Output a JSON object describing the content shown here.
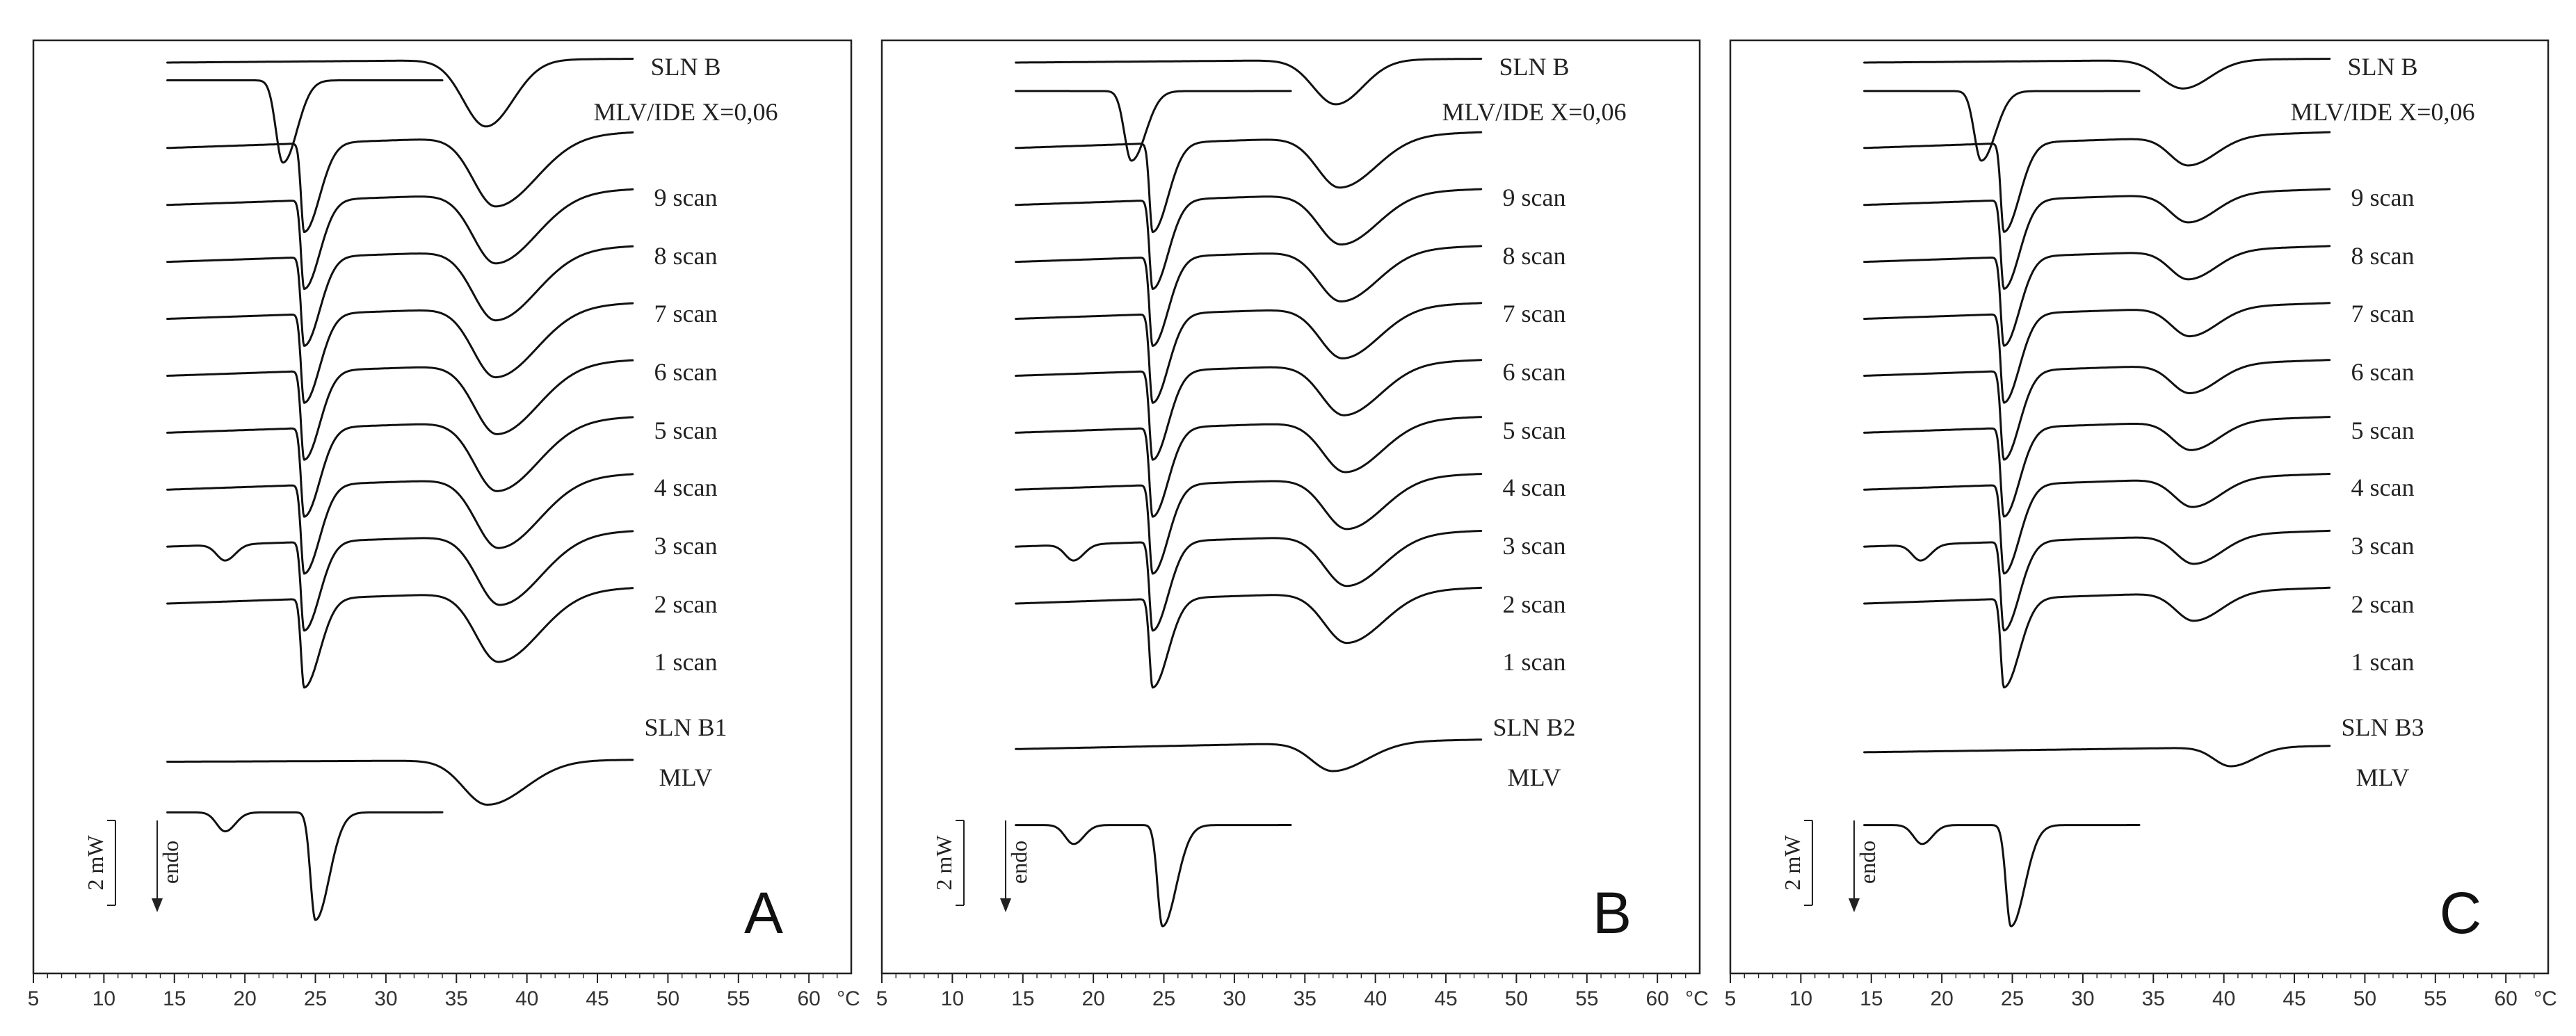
{
  "chart_data": [
    {
      "type": "line",
      "panel_label": "A",
      "xlim": [
        5,
        63
      ],
      "x_ticks": [
        5,
        10,
        15,
        20,
        25,
        30,
        35,
        40,
        45,
        50,
        55,
        60
      ],
      "x_unit": "°C",
      "scale_bar": "2 mW",
      "direction": "endo",
      "series": [
        {
          "name": "SLN B",
          "kind": "sln",
          "start": 14.5,
          "end": 47.5,
          "base": 0.0,
          "slope": -0.6,
          "dips": [
            {
              "center": 37.1,
              "depth": 10.5,
              "width": 1.6,
              "asym": 1.2
            }
          ]
        },
        {
          "name": "MLV/IDE X=0,06",
          "kind": "mlv",
          "start": 14.5,
          "end": 34.0,
          "base": 2.8,
          "slope": 0,
          "dips": [
            {
              "center": 22.7,
              "depth": 13,
              "width": 0.5,
              "asym": 2.0
            }
          ]
        },
        {
          "name": "9 scan",
          "kind": "scan",
          "start": 14.5,
          "end": 47.5,
          "base": 13.5,
          "slope": -2.5,
          "dips": [
            {
              "center": 24.2,
              "depth": 14,
              "width": 0.22,
              "asym": 5
            },
            {
              "center": 37.8,
              "depth": 11,
              "width": 1.6,
              "asym": 1.8
            }
          ]
        },
        {
          "name": "8 scan",
          "kind": "scan",
          "start": 14.5,
          "end": 47.5,
          "base": 22.5,
          "slope": -2.5,
          "dips": [
            {
              "center": 24.2,
              "depth": 14,
              "width": 0.22,
              "asym": 5
            },
            {
              "center": 37.8,
              "depth": 11,
              "width": 1.6,
              "asym": 1.8
            }
          ]
        },
        {
          "name": "7 scan",
          "kind": "scan",
          "start": 14.5,
          "end": 47.5,
          "base": 31.5,
          "slope": -2.5,
          "dips": [
            {
              "center": 24.2,
              "depth": 14,
              "width": 0.22,
              "asym": 5
            },
            {
              "center": 37.8,
              "depth": 11,
              "width": 1.6,
              "asym": 1.8
            }
          ]
        },
        {
          "name": "6 scan",
          "kind": "scan",
          "start": 14.5,
          "end": 47.5,
          "base": 40.5,
          "slope": -2.5,
          "dips": [
            {
              "center": 24.2,
              "depth": 14,
              "width": 0.22,
              "asym": 5
            },
            {
              "center": 37.8,
              "depth": 11,
              "width": 1.6,
              "asym": 1.8
            }
          ]
        },
        {
          "name": "5 scan",
          "kind": "scan",
          "start": 14.5,
          "end": 47.5,
          "base": 49.5,
          "slope": -2.5,
          "dips": [
            {
              "center": 24.2,
              "depth": 14,
              "width": 0.22,
              "asym": 5
            },
            {
              "center": 37.9,
              "depth": 11,
              "width": 1.6,
              "asym": 1.8
            }
          ]
        },
        {
          "name": "4 scan",
          "kind": "scan",
          "start": 14.5,
          "end": 47.5,
          "base": 58.5,
          "slope": -2.5,
          "dips": [
            {
              "center": 24.2,
              "depth": 14,
              "width": 0.22,
              "asym": 5
            },
            {
              "center": 37.9,
              "depth": 11,
              "width": 1.6,
              "asym": 1.8
            }
          ]
        },
        {
          "name": "3 scan",
          "kind": "scan",
          "start": 14.5,
          "end": 47.5,
          "base": 67.5,
          "slope": -2.5,
          "dips": [
            {
              "center": 24.2,
              "depth": 14,
              "width": 0.22,
              "asym": 5
            },
            {
              "center": 38.0,
              "depth": 11,
              "width": 1.6,
              "asym": 1.8
            }
          ]
        },
        {
          "name": "2 scan",
          "kind": "scan",
          "start": 14.5,
          "end": 47.5,
          "base": 76.5,
          "slope": -2.5,
          "dips": [
            {
              "center": 18.6,
              "depth": 2.5,
              "width": 0.6,
              "asym": 1.2
            },
            {
              "center": 24.2,
              "depth": 14,
              "width": 0.22,
              "asym": 5
            },
            {
              "center": 38.1,
              "depth": 11,
              "width": 1.6,
              "asym": 1.8
            }
          ]
        },
        {
          "name": "1 scan",
          "kind": "scan",
          "start": 14.5,
          "end": 47.5,
          "base": 85.5,
          "slope": -2.5,
          "dips": [
            {
              "center": 24.2,
              "depth": 14,
              "width": 0.22,
              "asym": 5
            },
            {
              "center": 38.0,
              "depth": 11,
              "width": 1.6,
              "asym": 1.8
            }
          ]
        },
        {
          "name": "SLN B1",
          "kind": "sln",
          "start": 14.5,
          "end": 47.5,
          "base": 110.5,
          "slope": -0.3,
          "dips": [
            {
              "center": 37.2,
              "depth": 7,
              "width": 1.7,
              "asym": 1.6
            }
          ]
        },
        {
          "name": "MLV",
          "kind": "mlv",
          "start": 14.5,
          "end": 34.0,
          "base": 118.5,
          "slope": 0,
          "dips": [
            {
              "center": 18.6,
              "depth": 3,
              "width": 0.6,
              "asym": 1.2
            },
            {
              "center": 25.0,
              "depth": 17,
              "width": 0.35,
              "asym": 2.8
            }
          ]
        }
      ]
    },
    {
      "type": "line",
      "panel_label": "B",
      "xlim": [
        5,
        63
      ],
      "x_ticks": [
        5,
        10,
        15,
        20,
        25,
        30,
        35,
        40,
        45,
        50,
        55,
        60
      ],
      "x_unit": "°C",
      "scale_bar": "2 mW",
      "direction": "endo",
      "series": [
        {
          "name": "SLN B",
          "kind": "sln",
          "start": 14.5,
          "end": 47.5,
          "base": 0.0,
          "slope": -0.6,
          "dips": [
            {
              "center": 37.2,
              "depth": 7,
              "width": 1.6,
              "asym": 1.2
            }
          ]
        },
        {
          "name": "MLV/IDE X=0,06",
          "kind": "mlv",
          "start": 14.5,
          "end": 34.0,
          "base": 4.5,
          "slope": 0,
          "dips": [
            {
              "center": 22.7,
              "depth": 11,
              "width": 0.5,
              "asym": 2.0
            }
          ]
        },
        {
          "name": "9 scan",
          "kind": "scan",
          "start": 14.5,
          "end": 47.5,
          "base": 13.5,
          "slope": -2.5,
          "dips": [
            {
              "center": 24.2,
              "depth": 14,
              "width": 0.22,
              "asym": 5
            },
            {
              "center": 37.5,
              "depth": 8,
              "width": 1.6,
              "asym": 1.6
            }
          ]
        },
        {
          "name": "8 scan",
          "kind": "scan",
          "start": 14.5,
          "end": 47.5,
          "base": 22.5,
          "slope": -2.5,
          "dips": [
            {
              "center": 24.2,
              "depth": 14,
              "width": 0.22,
              "asym": 5
            },
            {
              "center": 37.6,
              "depth": 8,
              "width": 1.6,
              "asym": 1.6
            }
          ]
        },
        {
          "name": "7 scan",
          "kind": "scan",
          "start": 14.5,
          "end": 47.5,
          "base": 31.5,
          "slope": -2.5,
          "dips": [
            {
              "center": 24.2,
              "depth": 14,
              "width": 0.22,
              "asym": 5
            },
            {
              "center": 37.6,
              "depth": 8,
              "width": 1.6,
              "asym": 1.6
            }
          ]
        },
        {
          "name": "6 scan",
          "kind": "scan",
          "start": 14.5,
          "end": 47.5,
          "base": 40.5,
          "slope": -2.5,
          "dips": [
            {
              "center": 24.2,
              "depth": 14,
              "width": 0.22,
              "asym": 5
            },
            {
              "center": 37.7,
              "depth": 8,
              "width": 1.6,
              "asym": 1.6
            }
          ]
        },
        {
          "name": "5 scan",
          "kind": "scan",
          "start": 14.5,
          "end": 47.5,
          "base": 49.5,
          "slope": -2.5,
          "dips": [
            {
              "center": 24.2,
              "depth": 14,
              "width": 0.22,
              "asym": 5
            },
            {
              "center": 37.8,
              "depth": 8,
              "width": 1.6,
              "asym": 1.6
            }
          ]
        },
        {
          "name": "4 scan",
          "kind": "scan",
          "start": 14.5,
          "end": 47.5,
          "base": 58.5,
          "slope": -2.5,
          "dips": [
            {
              "center": 24.2,
              "depth": 14,
              "width": 0.22,
              "asym": 5
            },
            {
              "center": 37.9,
              "depth": 8,
              "width": 1.6,
              "asym": 1.6
            }
          ]
        },
        {
          "name": "3 scan",
          "kind": "scan",
          "start": 14.5,
          "end": 47.5,
          "base": 67.5,
          "slope": -2.5,
          "dips": [
            {
              "center": 24.2,
              "depth": 14,
              "width": 0.22,
              "asym": 5
            },
            {
              "center": 38.0,
              "depth": 8,
              "width": 1.6,
              "asym": 1.6
            }
          ]
        },
        {
          "name": "2 scan",
          "kind": "scan",
          "start": 14.5,
          "end": 47.5,
          "base": 76.5,
          "slope": -2.5,
          "dips": [
            {
              "center": 18.6,
              "depth": 2.5,
              "width": 0.6,
              "asym": 1.2
            },
            {
              "center": 24.2,
              "depth": 14,
              "width": 0.22,
              "asym": 5
            },
            {
              "center": 38.0,
              "depth": 8,
              "width": 1.6,
              "asym": 1.6
            }
          ]
        },
        {
          "name": "1 scan",
          "kind": "scan",
          "start": 14.5,
          "end": 47.5,
          "base": 85.5,
          "slope": -2.5,
          "dips": [
            {
              "center": 24.2,
              "depth": 14,
              "width": 0.22,
              "asym": 5
            },
            {
              "center": 38.0,
              "depth": 8,
              "width": 1.6,
              "asym": 1.6
            }
          ]
        },
        {
          "name": "SLN B2",
          "kind": "sln",
          "start": 14.5,
          "end": 47.5,
          "base": 108.5,
          "slope": -1.5,
          "dips": [
            {
              "center": 37.0,
              "depth": 4.5,
              "width": 1.5,
              "asym": 1.6
            }
          ]
        },
        {
          "name": "MLV",
          "kind": "mlv",
          "start": 14.5,
          "end": 34.0,
          "base": 120.5,
          "slope": 0,
          "dips": [
            {
              "center": 18.6,
              "depth": 3,
              "width": 0.6,
              "asym": 1.2
            },
            {
              "center": 24.9,
              "depth": 16,
              "width": 0.35,
              "asym": 2.8
            }
          ]
        }
      ]
    },
    {
      "type": "line",
      "panel_label": "C",
      "xlim": [
        5,
        63
      ],
      "x_ticks": [
        5,
        10,
        15,
        20,
        25,
        30,
        35,
        40,
        45,
        50,
        55,
        60
      ],
      "x_unit": "°C",
      "scale_bar": "2 mW",
      "direction": "endo",
      "series": [
        {
          "name": "SLN B",
          "kind": "sln",
          "start": 14.5,
          "end": 47.5,
          "base": 0.0,
          "slope": -0.6,
          "dips": [
            {
              "center": 37.1,
              "depth": 4.5,
              "width": 1.6,
              "asym": 1.2
            }
          ]
        },
        {
          "name": "MLV/IDE X=0,06",
          "kind": "mlv",
          "start": 14.5,
          "end": 34.0,
          "base": 4.5,
          "slope": 0,
          "dips": [
            {
              "center": 22.8,
              "depth": 11,
              "width": 0.5,
              "asym": 2.0
            }
          ]
        },
        {
          "name": "9 scan",
          "kind": "scan",
          "start": 14.5,
          "end": 47.5,
          "base": 13.5,
          "slope": -2.5,
          "dips": [
            {
              "center": 24.4,
              "depth": 14,
              "width": 0.22,
              "asym": 5
            },
            {
              "center": 37.5,
              "depth": 4.5,
              "width": 1.3,
              "asym": 1.5
            }
          ]
        },
        {
          "name": "8 scan",
          "kind": "scan",
          "start": 14.5,
          "end": 47.5,
          "base": 22.5,
          "slope": -2.5,
          "dips": [
            {
              "center": 24.4,
              "depth": 14,
              "width": 0.22,
              "asym": 5
            },
            {
              "center": 37.5,
              "depth": 4.5,
              "width": 1.3,
              "asym": 1.5
            }
          ]
        },
        {
          "name": "7 scan",
          "kind": "scan",
          "start": 14.5,
          "end": 47.5,
          "base": 31.5,
          "slope": -2.5,
          "dips": [
            {
              "center": 24.4,
              "depth": 14,
              "width": 0.22,
              "asym": 5
            },
            {
              "center": 37.5,
              "depth": 4.5,
              "width": 1.3,
              "asym": 1.5
            }
          ]
        },
        {
          "name": "6 scan",
          "kind": "scan",
          "start": 14.5,
          "end": 47.5,
          "base": 40.5,
          "slope": -2.5,
          "dips": [
            {
              "center": 24.4,
              "depth": 14,
              "width": 0.22,
              "asym": 5
            },
            {
              "center": 37.6,
              "depth": 4.5,
              "width": 1.3,
              "asym": 1.5
            }
          ]
        },
        {
          "name": "5 scan",
          "kind": "scan",
          "start": 14.5,
          "end": 47.5,
          "base": 49.5,
          "slope": -2.5,
          "dips": [
            {
              "center": 24.4,
              "depth": 14,
              "width": 0.22,
              "asym": 5
            },
            {
              "center": 37.6,
              "depth": 4.5,
              "width": 1.3,
              "asym": 1.5
            }
          ]
        },
        {
          "name": "4 scan",
          "kind": "scan",
          "start": 14.5,
          "end": 47.5,
          "base": 58.5,
          "slope": -2.5,
          "dips": [
            {
              "center": 24.4,
              "depth": 14,
              "width": 0.22,
              "asym": 5
            },
            {
              "center": 37.7,
              "depth": 4.5,
              "width": 1.3,
              "asym": 1.5
            }
          ]
        },
        {
          "name": "3 scan",
          "kind": "scan",
          "start": 14.5,
          "end": 47.5,
          "base": 67.5,
          "slope": -2.5,
          "dips": [
            {
              "center": 24.4,
              "depth": 14,
              "width": 0.22,
              "asym": 5
            },
            {
              "center": 37.8,
              "depth": 4.5,
              "width": 1.3,
              "asym": 1.5
            }
          ]
        },
        {
          "name": "2 scan",
          "kind": "scan",
          "start": 14.5,
          "end": 47.5,
          "base": 76.5,
          "slope": -2.5,
          "dips": [
            {
              "center": 18.5,
              "depth": 2.5,
              "width": 0.6,
              "asym": 1.2
            },
            {
              "center": 24.4,
              "depth": 14,
              "width": 0.22,
              "asym": 5
            },
            {
              "center": 37.9,
              "depth": 4.5,
              "width": 1.3,
              "asym": 1.5
            }
          ]
        },
        {
          "name": "1 scan",
          "kind": "scan",
          "start": 14.5,
          "end": 47.5,
          "base": 85.5,
          "slope": -2.5,
          "dips": [
            {
              "center": 24.4,
              "depth": 14,
              "width": 0.22,
              "asym": 5
            },
            {
              "center": 37.9,
              "depth": 4.5,
              "width": 1.3,
              "asym": 1.5
            }
          ]
        },
        {
          "name": "SLN B3",
          "kind": "sln",
          "start": 14.5,
          "end": 47.5,
          "base": 109.0,
          "slope": -1.0,
          "dips": [
            {
              "center": 40.5,
              "depth": 3.0,
              "width": 1.2,
              "asym": 1.4
            }
          ]
        },
        {
          "name": "MLV",
          "kind": "mlv",
          "start": 14.5,
          "end": 34.0,
          "base": 120.5,
          "slope": 0,
          "dips": [
            {
              "center": 18.6,
              "depth": 3,
              "width": 0.6,
              "asym": 1.2
            },
            {
              "center": 24.9,
              "depth": 16,
              "width": 0.35,
              "asym": 2.8
            }
          ]
        }
      ]
    }
  ]
}
